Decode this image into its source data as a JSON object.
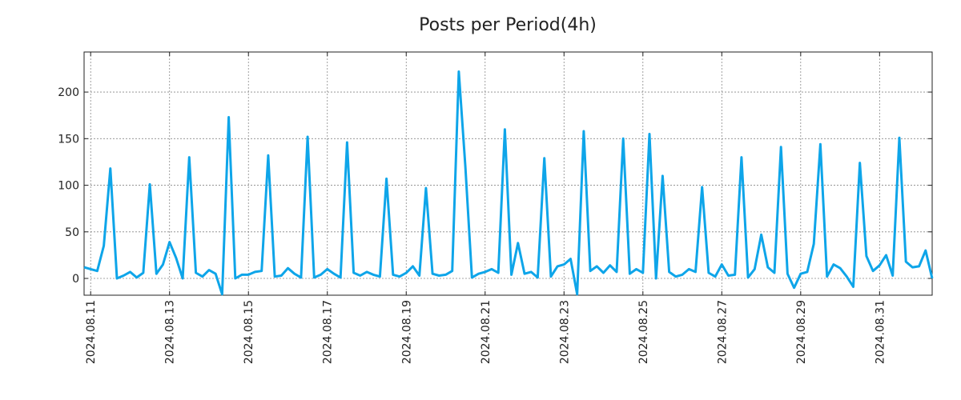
{
  "chart_data": {
    "type": "line",
    "title": "Posts per Period(4h)",
    "xlabel": "",
    "ylabel": "",
    "ylim": [
      -18,
      243
    ],
    "yticks": [
      0,
      50,
      100,
      150,
      200
    ],
    "x_start": "2024.08.10 20:00",
    "x_step_hours": 4,
    "xticks": [
      "2024.08.11",
      "2024.08.13",
      "2024.08.15",
      "2024.08.17",
      "2024.08.19",
      "2024.08.21",
      "2024.08.23",
      "2024.08.25",
      "2024.08.27",
      "2024.08.29",
      "2024.08.31"
    ],
    "grid": true,
    "colors": {
      "line": "#0ea5e9",
      "grid": "#888888",
      "frame": "#222222"
    },
    "series": [
      {
        "name": "Posts",
        "values": [
          12,
          10,
          8,
          35,
          118,
          0,
          3,
          7,
          1,
          6,
          101,
          5,
          15,
          39,
          22,
          0,
          130,
          6,
          2,
          9,
          5,
          -17,
          173,
          0,
          4,
          4,
          7,
          8,
          132,
          2,
          3,
          11,
          5,
          1,
          152,
          1,
          4,
          10,
          5,
          1,
          146,
          6,
          3,
          7,
          4,
          2,
          107,
          4,
          2,
          6,
          13,
          3,
          97,
          5,
          3,
          4,
          8,
          222,
          120,
          1,
          5,
          7,
          10,
          6,
          160,
          4,
          38,
          5,
          7,
          1,
          129,
          2,
          13,
          15,
          21,
          -17,
          158,
          8,
          13,
          6,
          14,
          7,
          150,
          5,
          10,
          6,
          155,
          0,
          110,
          7,
          2,
          4,
          10,
          7,
          98,
          6,
          2,
          15,
          3,
          4,
          130,
          1,
          10,
          47,
          12,
          6,
          141,
          5,
          -10,
          5,
          7,
          37,
          144,
          2,
          15,
          11,
          2,
          -9,
          124,
          24,
          8,
          14,
          25,
          3,
          151,
          18,
          12,
          13,
          30,
          0
        ]
      }
    ]
  }
}
